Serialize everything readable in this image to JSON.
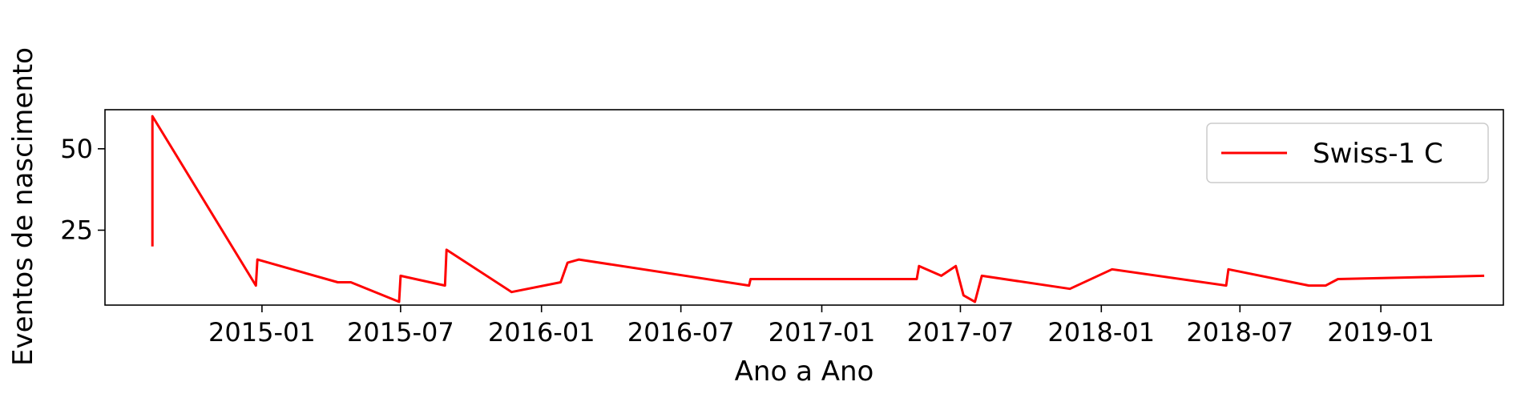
{
  "chart_data": {
    "type": "line",
    "title": "",
    "xlabel": "Ano a Ano",
    "ylabel": "Eventos de nascimento",
    "x_tick_labels": [
      "2015-01",
      "2015-07",
      "2016-01",
      "2016-07",
      "2017-01",
      "2017-07",
      "2018-01",
      "2018-07",
      "2019-01"
    ],
    "y_ticks": [
      25,
      50
    ],
    "ylim": [
      2,
      62
    ],
    "xlim": [
      "2014-06-10",
      "2019-06-10"
    ],
    "legend_position": "top-right",
    "grid": false,
    "series": [
      {
        "name": "Swiss-1 C",
        "color": "#ff0000",
        "points": [
          {
            "x": "2014-08-11",
            "y": 20
          },
          {
            "x": "2014-08-11",
            "y": 60
          },
          {
            "x": "2014-12-24",
            "y": 8
          },
          {
            "x": "2014-12-26",
            "y": 16
          },
          {
            "x": "2015-04-10",
            "y": 9
          },
          {
            "x": "2015-04-27",
            "y": 9
          },
          {
            "x": "2015-06-29",
            "y": 3
          },
          {
            "x": "2015-07-01",
            "y": 11
          },
          {
            "x": "2015-08-28",
            "y": 8
          },
          {
            "x": "2015-08-30",
            "y": 19
          },
          {
            "x": "2015-11-23",
            "y": 6
          },
          {
            "x": "2016-01-26",
            "y": 9
          },
          {
            "x": "2016-02-04",
            "y": 15
          },
          {
            "x": "2016-02-19",
            "y": 16
          },
          {
            "x": "2016-09-28",
            "y": 8
          },
          {
            "x": "2016-09-30",
            "y": 10
          },
          {
            "x": "2017-05-05",
            "y": 10
          },
          {
            "x": "2017-05-08",
            "y": 14
          },
          {
            "x": "2017-06-06",
            "y": 11
          },
          {
            "x": "2017-06-25",
            "y": 14
          },
          {
            "x": "2017-07-05",
            "y": 5
          },
          {
            "x": "2017-07-20",
            "y": 3
          },
          {
            "x": "2017-07-29",
            "y": 11
          },
          {
            "x": "2017-11-21",
            "y": 7
          },
          {
            "x": "2018-01-15",
            "y": 13
          },
          {
            "x": "2018-06-13",
            "y": 8
          },
          {
            "x": "2018-06-16",
            "y": 13
          },
          {
            "x": "2018-09-29",
            "y": 8
          },
          {
            "x": "2018-10-21",
            "y": 8
          },
          {
            "x": "2018-11-06",
            "y": 10
          },
          {
            "x": "2019-05-16",
            "y": 11
          }
        ]
      }
    ]
  }
}
